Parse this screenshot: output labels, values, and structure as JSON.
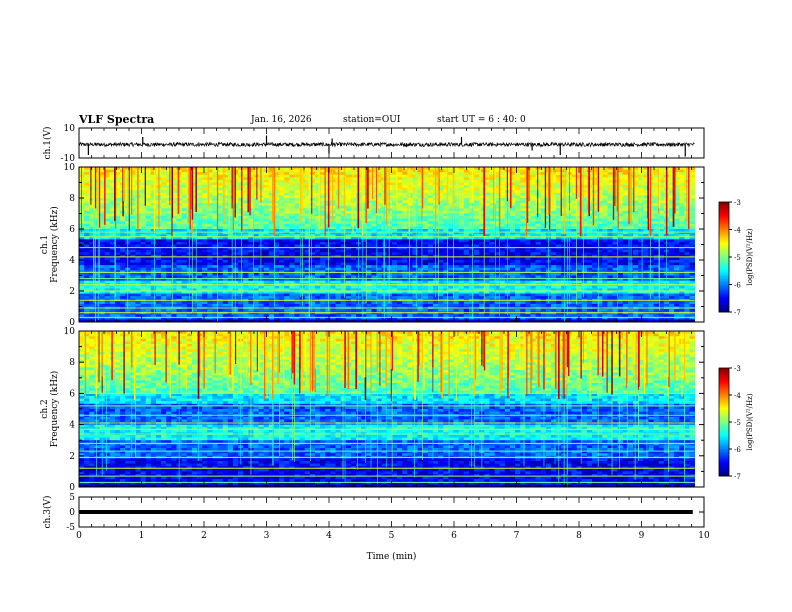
{
  "header": {
    "title": "VLF Spectra",
    "date": "Jan. 16, 2026",
    "station": "station=OUI",
    "start_ut": "start UT =  6 : 40: 0"
  },
  "colors": {
    "background": "#ffffff",
    "axis": "#000000",
    "colormap": [
      "#00007f",
      "#0000ff",
      "#007fff",
      "#00ffff",
      "#7fff7f",
      "#ffff00",
      "#ff7f00",
      "#ff0000",
      "#7f0000"
    ]
  },
  "chart_data": [
    {
      "type": "line",
      "name": "ch1-waveform",
      "ylabel": "ch.1(V)",
      "ylim": [
        -10,
        10
      ],
      "yticks": [
        "10",
        "-10"
      ],
      "baseline": -1,
      "spikes": [
        {
          "t": 0.15,
          "v": -8
        },
        {
          "t": 1.02,
          "v": 4
        },
        {
          "t": 3.0,
          "v": 5
        },
        {
          "t": 4.0,
          "v": -7
        },
        {
          "t": 4.05,
          "v": 3
        },
        {
          "t": 6.12,
          "v": 4
        },
        {
          "t": 7.25,
          "v": -5
        },
        {
          "t": 7.7,
          "v": -8
        },
        {
          "t": 9.7,
          "v": -9
        }
      ]
    },
    {
      "type": "heatmap",
      "name": "ch1-spectrogram",
      "ylabel_top": "ch.1",
      "ylabel": "Frequency (kHz)",
      "xlim": [
        0,
        10
      ],
      "data_xmax": 9.85,
      "ylim": [
        0,
        10
      ],
      "yticks": [
        "0",
        "2",
        "4",
        "6",
        "8",
        "10"
      ],
      "colorbar": {
        "range": [
          -7,
          -3
        ],
        "ticks": [
          "-3",
          "-4",
          "-5",
          "-6",
          "-7"
        ],
        "label": "log(PSD)(V²/Hz)"
      },
      "dark_band_khz": [
        3.6,
        5.4
      ],
      "band_lines_khz": [
        0.3,
        0.6,
        0.9,
        1.4,
        2.0,
        2.4,
        2.8,
        3.2,
        4.2,
        4.8,
        5.5,
        5.8
      ],
      "noise_band_khz": [
        1.8,
        2.6
      ]
    },
    {
      "type": "heatmap",
      "name": "ch2-spectrogram",
      "ylabel_top": "ch.2",
      "ylabel": "Frequency (kHz)",
      "xlim": [
        0,
        10
      ],
      "data_xmax": 9.85,
      "ylim": [
        0,
        10
      ],
      "yticks": [
        "0",
        "2",
        "4",
        "6",
        "8",
        "10"
      ],
      "colorbar": {
        "range": [
          -7,
          -3
        ],
        "ticks": [
          "-3",
          "-4",
          "-5",
          "-6",
          "-7"
        ],
        "label": "log(PSD)(V²/Hz)"
      },
      "dark_band_khz": [
        0.0,
        1.9
      ],
      "band_lines_khz": [
        0.3,
        0.7,
        1.2,
        1.9,
        2.3,
        2.8,
        3.4,
        3.7,
        4.1,
        4.6,
        5.2,
        6.0
      ],
      "noise_band_khz": [
        3.0,
        4.0
      ]
    },
    {
      "type": "line",
      "name": "ch3-waveform",
      "ylabel": "ch.3(V)",
      "ylim": [
        -5,
        5
      ],
      "yticks": [
        "5",
        "0",
        "-5"
      ],
      "baseline": 0,
      "spikes": []
    }
  ],
  "xaxis": {
    "xlabel": "Time (min)",
    "xlim": [
      0,
      10
    ],
    "ticks": [
      "0",
      "1",
      "2",
      "3",
      "4",
      "5",
      "6",
      "7",
      "8",
      "9",
      "10"
    ]
  }
}
